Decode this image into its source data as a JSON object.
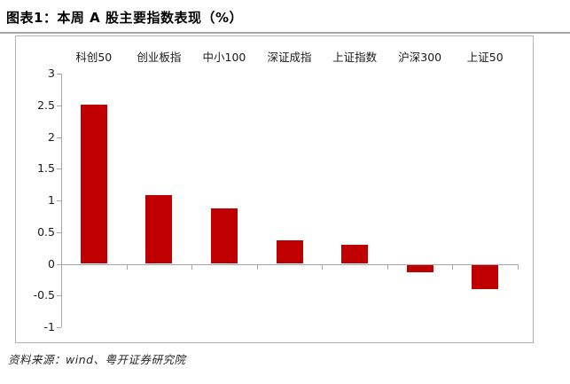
{
  "title": "图表1：本周 A 股主要指数表现（%）",
  "source_note": "资料来源：wind、粤开证券研究院",
  "colors": {
    "bar": "#c00000",
    "axis": "#a6a6a6",
    "frame_border": "#b3b3b3",
    "title_rule": "#a6a6a6",
    "text": "#000000"
  },
  "chart_data": {
    "type": "bar",
    "title": "图表1：本周 A 股主要指数表现（%）",
    "categories": [
      "科创50",
      "创业板指",
      "中小100",
      "深证成指",
      "上证指数",
      "沪深300",
      "上证50"
    ],
    "values": [
      2.51,
      1.08,
      0.88,
      0.37,
      0.3,
      -0.12,
      -0.38
    ],
    "ylim": [
      -1,
      3
    ],
    "yticks": [
      3,
      2.5,
      2,
      1.5,
      1,
      0.5,
      0,
      -0.5,
      -1
    ],
    "xlabel": "",
    "ylabel": "",
    "grid": false,
    "legend": "none",
    "category_labels_position": "top",
    "bar_color": "#c00000"
  }
}
